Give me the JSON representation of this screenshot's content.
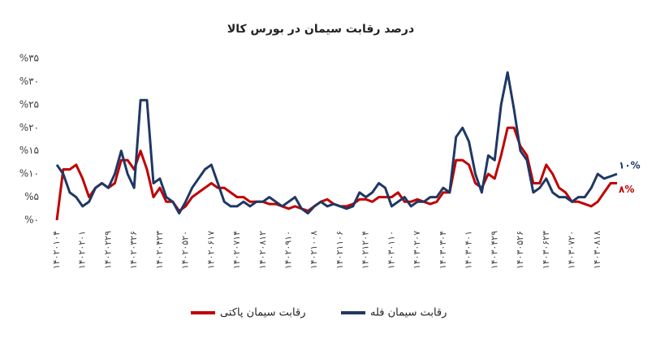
{
  "chart_data": {
    "type": "line",
    "title": "درصد رقابت سیمان در بورس کالا",
    "categories": [
      "۱۴۰۲۰۱۰۴",
      null,
      null,
      null,
      "۱۴۰۲۰۲۰۱",
      null,
      null,
      null,
      "۱۴۰۲۰۲۲۹",
      null,
      null,
      null,
      "۱۴۰۲۰۳۲۶",
      null,
      null,
      null,
      "۱۴۰۲۰۴۲۳",
      null,
      null,
      null,
      "۱۴۰۲۰۵۲۰",
      null,
      null,
      null,
      "۱۴۰۲۰۶۱۷",
      null,
      null,
      null,
      "۱۴۰۲۰۷۱۴",
      null,
      null,
      null,
      "۱۴۰۲۰۸۱۲",
      null,
      null,
      null,
      "۱۴۰۲۰۹۱۰",
      null,
      null,
      null,
      "۱۴۰۲۱۰۰۸",
      null,
      null,
      null,
      "۱۴۰۲۱۱۰۶",
      null,
      null,
      null,
      "۱۴۰۲۱۲۰۴",
      null,
      null,
      null,
      "۱۴۰۳۰۱۱۰",
      null,
      null,
      null,
      "۱۴۰۳۰۲۰۷",
      null,
      null,
      null,
      "۱۴۰۳۰۳۰۴",
      null,
      null,
      null,
      "۱۴۰۳۰۴۰۱",
      null,
      null,
      null,
      "۱۴۰۳۰۴۲۹",
      null,
      null,
      null,
      "۱۴۰۳۰۵۲۶",
      null,
      null,
      null,
      "۱۴۰۳۰۶۲۳",
      null,
      null,
      null,
      "۱۴۰۳۰۷۲۰",
      null,
      null,
      null,
      "۱۴۰۳۰۸۱۸",
      null,
      null,
      null
    ],
    "series": [
      {
        "name": "رقابت سیمان پاکتی",
        "color": "#c00000",
        "values": [
          0,
          11,
          11,
          12,
          9,
          5,
          7,
          8,
          7,
          8,
          13,
          13,
          11,
          15,
          11,
          5,
          7,
          4,
          4,
          2,
          3,
          5,
          6,
          7,
          8,
          7,
          7,
          6,
          5,
          5,
          4,
          4,
          4,
          3.5,
          3.5,
          3,
          2.5,
          3,
          2.5,
          2,
          3,
          4,
          4.5,
          3.5,
          3,
          3,
          3.5,
          4.5,
          4.5,
          4,
          5,
          5,
          5,
          6,
          4,
          4,
          4.5,
          4,
          3.5,
          4,
          6,
          6,
          13,
          13,
          12,
          8,
          7,
          10,
          9,
          14,
          20,
          20,
          16,
          14,
          8,
          8,
          12,
          10,
          7,
          6,
          4,
          4,
          3.5,
          3,
          4,
          6,
          8,
          8
        ],
        "value_labels": [
          null,
          null,
          null,
          null,
          null,
          null,
          null,
          null,
          null,
          null,
          null,
          null,
          null,
          null,
          null,
          null,
          null,
          null,
          null,
          null,
          null,
          null,
          null,
          null,
          null,
          null,
          null,
          null,
          null,
          null,
          null,
          null,
          null,
          null,
          null,
          null,
          null,
          null,
          null,
          null,
          null,
          null,
          null,
          null,
          null,
          null,
          null,
          null,
          null,
          null,
          null,
          null,
          null,
          null,
          null,
          null,
          null,
          null,
          null,
          null,
          null,
          null,
          null,
          null,
          null,
          null,
          null,
          null,
          null,
          null,
          null,
          null,
          null,
          null,
          null,
          null,
          null,
          null,
          null,
          null,
          null,
          null,
          null,
          null,
          null,
          null,
          null,
          "۸%"
        ]
      },
      {
        "name": "رقابت سیمان فله",
        "color": "#1f3864",
        "values": [
          12,
          10,
          6,
          5,
          3,
          4,
          7,
          8,
          7,
          10,
          15,
          10,
          7,
          26,
          26,
          8,
          9,
          5,
          4,
          1.5,
          4,
          7,
          9,
          11,
          12,
          8,
          4,
          3,
          3,
          4,
          3,
          4,
          4,
          5,
          4,
          3,
          4,
          5,
          2.5,
          1.5,
          3,
          4,
          3,
          3.5,
          3,
          2.5,
          3,
          6,
          5,
          6,
          8,
          7,
          3,
          4,
          5,
          3,
          4,
          4,
          5,
          5,
          7,
          6,
          18,
          20,
          17,
          10,
          6,
          14,
          13,
          25,
          32,
          24,
          15,
          13,
          6,
          7,
          9,
          6,
          5,
          5,
          4,
          5,
          5,
          7,
          10,
          9,
          9.5,
          10
        ],
        "value_labels": [
          null,
          null,
          null,
          null,
          null,
          null,
          null,
          null,
          null,
          null,
          null,
          null,
          null,
          null,
          null,
          null,
          null,
          null,
          null,
          null,
          null,
          null,
          null,
          null,
          null,
          null,
          null,
          null,
          null,
          null,
          null,
          null,
          null,
          null,
          null,
          null,
          null,
          null,
          null,
          null,
          null,
          null,
          null,
          null,
          null,
          null,
          null,
          null,
          null,
          null,
          null,
          null,
          null,
          null,
          null,
          null,
          null,
          null,
          null,
          null,
          null,
          null,
          null,
          null,
          null,
          null,
          null,
          null,
          null,
          null,
          null,
          null,
          null,
          null,
          null,
          null,
          null,
          null,
          null,
          null,
          null,
          null,
          null,
          null,
          null,
          null,
          null,
          "۱۰%"
        ]
      }
    ],
    "ylim": [
      0,
      35
    ],
    "yticks": [
      {
        "value": 0,
        "label": "%۰"
      },
      {
        "value": 5,
        "label": "%۵"
      },
      {
        "value": 10,
        "label": "%۱۰"
      },
      {
        "value": 15,
        "label": "%۱۵"
      },
      {
        "value": 20,
        "label": "%۲۰"
      },
      {
        "value": 25,
        "label": "%۲۵"
      },
      {
        "value": 30,
        "label": "%۳۰"
      },
      {
        "value": 35,
        "label": "%۳۵"
      }
    ],
    "grid": false,
    "legend": "bottom"
  }
}
